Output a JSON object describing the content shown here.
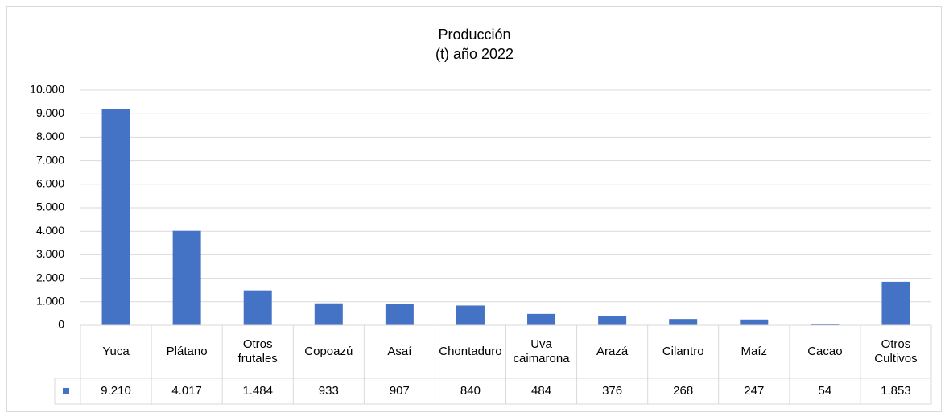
{
  "chart_data": {
    "type": "bar",
    "title": "Producción\n(t) año 2022",
    "categories": [
      "Yuca",
      "Plátano",
      "Otros frutales",
      "Copoazú",
      "Asaí",
      "Chontaduro",
      "Uva caimarona",
      "Arazá",
      "Cilantro",
      "Maíz",
      "Cacao",
      "Otros Cultivos"
    ],
    "values": [
      9210,
      4017,
      1484,
      933,
      907,
      840,
      484,
      376,
      268,
      247,
      54,
      1853
    ],
    "value_labels": [
      "9.210",
      "4.017",
      "1.484",
      "933",
      "907",
      "840",
      "484",
      "376",
      "268",
      "247",
      "54",
      "1.853"
    ],
    "color": "#4472c4",
    "ylim": [
      0,
      10000
    ],
    "yticks": [
      0,
      {
        "value": 1000,
        "label": "1.000"
      },
      {
        "value": 2000,
        "label": "2.000"
      },
      {
        "value": 3000,
        "label": "3.000"
      },
      {
        "value": 4000,
        "label": "4.000"
      },
      {
        "value": 5000,
        "label": "5.000"
      },
      {
        "value": 6000,
        "label": "6.000"
      },
      {
        "value": 7000,
        "label": "7.000"
      },
      {
        "value": 8000,
        "label": "8.000"
      },
      {
        "value": 9000,
        "label": "9.000"
      },
      {
        "value": 10000,
        "label": "10.000"
      }
    ],
    "grid": true
  }
}
